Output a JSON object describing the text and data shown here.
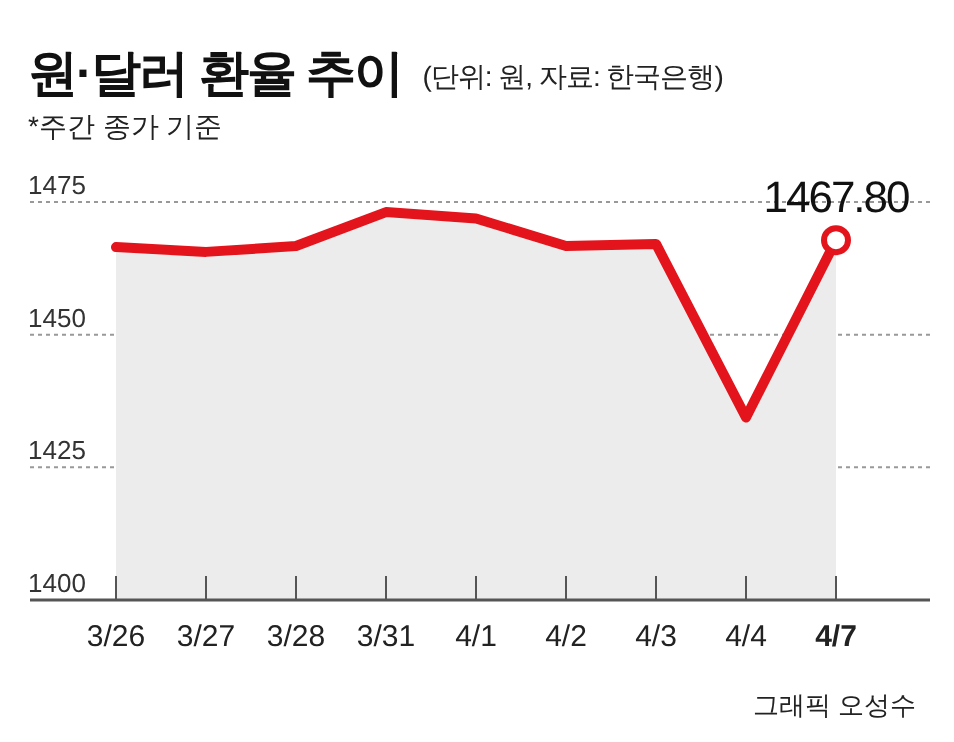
{
  "chart_data": {
    "type": "area",
    "title": "원·달러 환율 추이",
    "subtitle": "(단위: 원, 자료: 한국은행)",
    "annotations": [
      "*주간 종가 기준",
      "그래픽 오성수"
    ],
    "categories": [
      "3/26",
      "3/27",
      "3/28",
      "3/31",
      "4/1",
      "4/2",
      "4/3",
      "4/4",
      "4/7"
    ],
    "series": [
      {
        "color": "#e3141c",
        "values": [
          1466.5,
          1465.6,
          1466.7,
          1473.1,
          1471.9,
          1466.7,
          1467.1,
          1434.4,
          1467.8
        ],
        "value_labels": [
          null,
          null,
          null,
          null,
          null,
          null,
          null,
          null,
          "1467.80"
        ]
      }
    ],
    "ylim": [
      1400,
      1475
    ],
    "yticks": [
      1400,
      1425,
      1450,
      1475
    ],
    "grid": "y",
    "marker": "none"
  }
}
